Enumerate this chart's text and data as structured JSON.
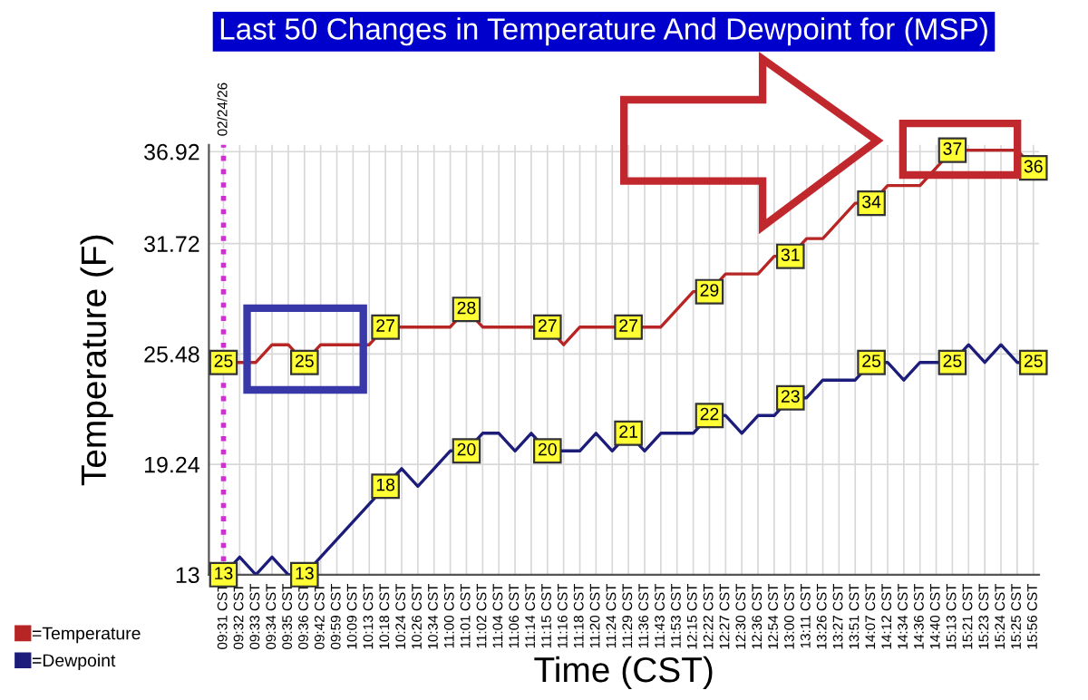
{
  "chart_data": {
    "type": "line",
    "title": "Last 50 Changes in Temperature And Dewpoint for (MSP)",
    "xlabel": "Time (CST)",
    "ylabel": "Temperature (F)",
    "categories": [
      "09:31 CST",
      "09:32 CST",
      "09:33 CST",
      "09:34 CST",
      "09:35 CST",
      "09:36 CST",
      "09:42 CST",
      "09:59 CST",
      "10:09 CST",
      "10:13 CST",
      "10:18 CST",
      "10:24 CST",
      "10:26 CST",
      "10:34 CST",
      "11:00 CST",
      "11:01 CST",
      "11:02 CST",
      "11:04 CST",
      "11:06 CST",
      "11:14 CST",
      "11:15 CST",
      "11:16 CST",
      "11:18 CST",
      "11:20 CST",
      "11:24 CST",
      "11:29 CST",
      "11:36 CST",
      "11:43 CST",
      "11:53 CST",
      "12:15 CST",
      "12:22 CST",
      "12:27 CST",
      "12:30 CST",
      "12:36 CST",
      "12:54 CST",
      "13:00 CST",
      "13:11 CST",
      "13:26 CST",
      "13:27 CST",
      "13:51 CST",
      "14:07 CST",
      "14:12 CST",
      "14:34 CST",
      "14:36 CST",
      "14:40 CST",
      "15:13 CST",
      "15:21 CST",
      "15:23 CST",
      "15:24 CST",
      "15:25 CST",
      "15:56 CST"
    ],
    "series": [
      {
        "name": "=Temperature",
        "color": "#b82525",
        "values": [
          25,
          25,
          25,
          26,
          26,
          25,
          26,
          26,
          26,
          26,
          27,
          27,
          27,
          27,
          27,
          28,
          27,
          27,
          27,
          27,
          27,
          26,
          27,
          27,
          27,
          27,
          27,
          27,
          28,
          29,
          29,
          30,
          30,
          30,
          31,
          31,
          32,
          32,
          33,
          34,
          34,
          35,
          35,
          35,
          36,
          37,
          37,
          37,
          37,
          37,
          36
        ],
        "value_labels": [
          "25",
          null,
          null,
          null,
          null,
          "25",
          null,
          null,
          null,
          null,
          "27",
          null,
          null,
          null,
          null,
          "28",
          null,
          null,
          null,
          null,
          "27",
          null,
          null,
          null,
          null,
          "27",
          null,
          null,
          null,
          null,
          "29",
          null,
          null,
          null,
          null,
          "31",
          null,
          null,
          null,
          null,
          "34",
          null,
          null,
          null,
          null,
          "37",
          null,
          null,
          null,
          null,
          "36"
        ]
      },
      {
        "name": "=Dewpoint",
        "color": "#1c1c7a",
        "values": [
          13,
          14,
          13,
          14,
          13,
          13,
          14,
          15,
          16,
          17,
          18,
          19,
          18,
          19,
          20,
          20,
          21,
          21,
          20,
          21,
          20,
          20,
          20,
          21,
          20,
          21,
          20,
          21,
          21,
          21,
          22,
          22,
          21,
          22,
          22,
          23,
          23,
          24,
          24,
          24,
          25,
          25,
          24,
          25,
          25,
          25,
          26,
          25,
          26,
          25,
          25
        ],
        "value_labels": [
          "13",
          null,
          null,
          null,
          null,
          "13",
          null,
          null,
          null,
          null,
          "18",
          null,
          null,
          null,
          null,
          "20",
          null,
          null,
          null,
          null,
          "20",
          null,
          null,
          null,
          null,
          "21",
          null,
          null,
          null,
          null,
          "22",
          null,
          null,
          null,
          null,
          "23",
          null,
          null,
          null,
          null,
          "25",
          null,
          null,
          null,
          null,
          "25",
          null,
          null,
          null,
          null,
          "25"
        ]
      }
    ],
    "ylim": [
      13,
      37.3
    ],
    "yticks": [
      13,
      19.24,
      25.48,
      31.72,
      36.92
    ],
    "ref_lines": [
      {
        "axis": "x",
        "value": "09:31 CST",
        "label": "02/24/26",
        "color": "#cc33cc",
        "line_style": "dotted"
      }
    ],
    "grid": true,
    "legend": "bottom left",
    "marker": "none",
    "line_style": "solid"
  }
}
